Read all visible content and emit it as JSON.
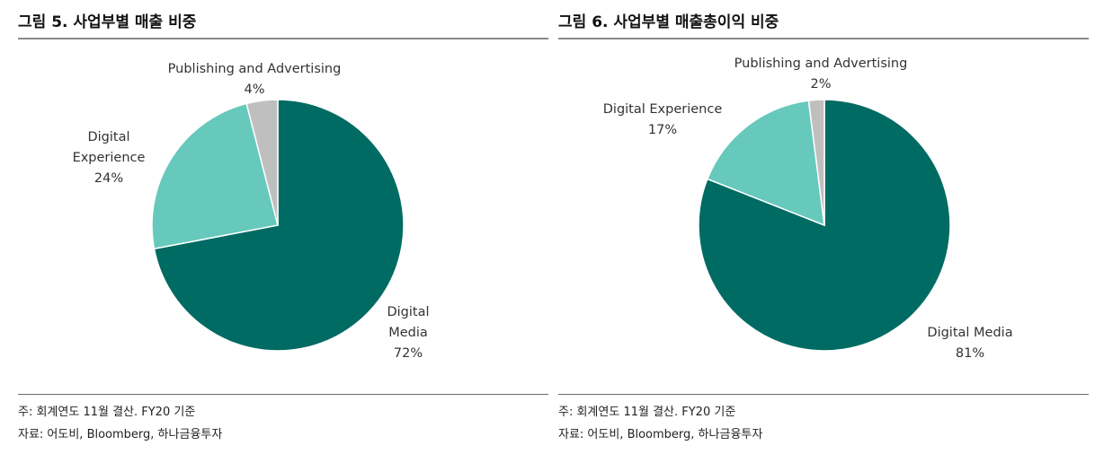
{
  "panels": [
    {
      "title": "그림 5. 사업부별 매출 비중",
      "note": "주: 회계연도 11월 결산. FY20 기준",
      "source": "자료: 어도비, Bloomberg, 하나금융투자"
    },
    {
      "title": "그림 6. 사업부별 매출총이익 비중",
      "note": "주: 회계연도 11월 결산. FY20 기준",
      "source": "자료: 어도비, Bloomberg, 하나금융투자"
    }
  ],
  "chart_data": [
    {
      "type": "pie",
      "title": "그림 5. 사업부별 매출 비중",
      "slices": [
        {
          "label_lines": [
            "Digital",
            "Media"
          ],
          "value": 72,
          "value_text": "72%",
          "color": "#006b63"
        },
        {
          "label_lines": [
            "Digital",
            "Experience"
          ],
          "value": 24,
          "value_text": "24%",
          "color": "#66c9bc"
        },
        {
          "label_lines": [
            "Publishing and Advertising"
          ],
          "value": 4,
          "value_text": "4%",
          "color": "#bfbfbf"
        }
      ]
    },
    {
      "type": "pie",
      "title": "그림 6. 사업부별 매출총이익 비중",
      "slices": [
        {
          "label_lines": [
            "Digital Media"
          ],
          "value": 81,
          "value_text": "81%",
          "color": "#006b63"
        },
        {
          "label_lines": [
            "Digital Experience"
          ],
          "value": 17,
          "value_text": "17%",
          "color": "#66c9bc"
        },
        {
          "label_lines": [
            "Publishing and Advertising"
          ],
          "value": 2,
          "value_text": "2%",
          "color": "#bfbfbf"
        }
      ]
    }
  ]
}
